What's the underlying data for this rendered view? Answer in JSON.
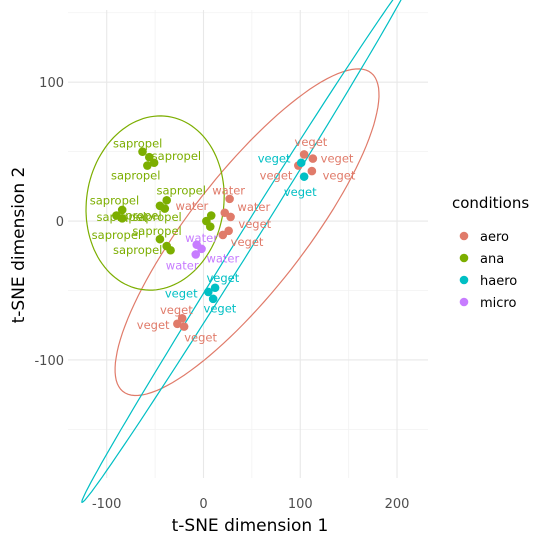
{
  "chart_data": {
    "type": "scatter",
    "xlabel": "t-SNE dimension 1",
    "ylabel": "t-SNE dimension 2",
    "xlim": [
      -140,
      232
    ],
    "ylim": [
      -185,
      152
    ],
    "x_ticks": [
      -100,
      0,
      100,
      200
    ],
    "y_ticks": [
      -100,
      0,
      100
    ],
    "x_tick_labels": [
      "-100",
      "0",
      "100",
      "200"
    ],
    "y_tick_labels": [
      "-100",
      "0",
      "100"
    ],
    "grid": true,
    "legend_position": "right",
    "legend_title": "conditions",
    "series": [
      {
        "name": "aero",
        "color": "#E07B6A",
        "points": [
          {
            "x": 104,
            "y": 48,
            "label": "veget"
          },
          {
            "x": 113,
            "y": 45,
            "label": "veget"
          },
          {
            "x": 98,
            "y": 40,
            "label": "veget"
          },
          {
            "x": 112,
            "y": 36,
            "label": "veget"
          },
          {
            "x": 27,
            "y": 16,
            "label": "water"
          },
          {
            "x": 22,
            "y": 6,
            "label": "water"
          },
          {
            "x": 28,
            "y": 3,
            "label": "water"
          },
          {
            "x": 26,
            "y": -7,
            "label": "veget"
          },
          {
            "x": 20,
            "y": -10,
            "label": "veget"
          },
          {
            "x": -22,
            "y": -70,
            "label": "veget"
          },
          {
            "x": -27,
            "y": -74,
            "label": "veget"
          },
          {
            "x": -20,
            "y": -76,
            "label": "veget"
          }
        ]
      },
      {
        "name": "ana",
        "color": "#7CAE00",
        "points": [
          {
            "x": -63,
            "y": 50,
            "label": "sapropel"
          },
          {
            "x": -56,
            "y": 46,
            "label": "sapropel"
          },
          {
            "x": -51,
            "y": 42,
            "label": "sapropel"
          },
          {
            "x": -58,
            "y": 40,
            "label": "sapropel"
          },
          {
            "x": -38,
            "y": 15,
            "label": "sapropel"
          },
          {
            "x": -45,
            "y": 11,
            "label": "sapropel"
          },
          {
            "x": -40,
            "y": 9,
            "label": "sapropel"
          },
          {
            "x": -84,
            "y": 8,
            "label": "sapropel"
          },
          {
            "x": -90,
            "y": 4,
            "label": "sapropel"
          },
          {
            "x": -84,
            "y": 2,
            "label": "sapropel"
          },
          {
            "x": -45,
            "y": -13,
            "label": "sapropel"
          },
          {
            "x": -38,
            "y": -18,
            "label": "sapropel"
          },
          {
            "x": -34,
            "y": -21,
            "label": "sapropel"
          },
          {
            "x": 3,
            "y": 0,
            "label": "water"
          },
          {
            "x": 8,
            "y": 4,
            "label": "water"
          },
          {
            "x": 7,
            "y": -4,
            "label": "water"
          }
        ]
      },
      {
        "name": "haero",
        "color": "#00BFC4",
        "points": [
          {
            "x": 101,
            "y": 42,
            "label": "veget"
          },
          {
            "x": 104,
            "y": 32,
            "label": "veget"
          },
          {
            "x": 12,
            "y": -48,
            "label": "veget"
          },
          {
            "x": 5,
            "y": -51,
            "label": "veget"
          },
          {
            "x": 10,
            "y": -56,
            "label": "veget"
          }
        ]
      },
      {
        "name": "micro",
        "color": "#C77CFF",
        "points": [
          {
            "x": -7,
            "y": -17,
            "label": "water"
          },
          {
            "x": -2,
            "y": -20,
            "label": "water"
          },
          {
            "x": -8,
            "y": -24,
            "label": "water"
          }
        ]
      }
    ],
    "ellipses": [
      {
        "group": "aero",
        "color": "#E07B6A",
        "cx": 45,
        "cy": -8,
        "a": 173,
        "b": 50,
        "angle_deg": 40
      },
      {
        "group": "ana",
        "color": "#7CAE00",
        "cx": -50,
        "cy": 13,
        "a": 72,
        "b": 62,
        "angle_deg": 15
      },
      {
        "group": "haero",
        "color": "#00BFC4",
        "cx": 45,
        "cy": -13,
        "a": 255,
        "b": 7.5,
        "angle_deg": 48
      }
    ],
    "text_labels": [
      {
        "text": "sapropel",
        "x": -68,
        "y": 56,
        "color": "#7CAE00"
      },
      {
        "text": "sapropel",
        "x": -28,
        "y": 47,
        "color": "#7CAE00"
      },
      {
        "text": "sapropel",
        "x": -70,
        "y": 33,
        "color": "#7CAE00"
      },
      {
        "text": "sapropel",
        "x": -23,
        "y": 22,
        "color": "#7CAE00"
      },
      {
        "text": "sapropel",
        "x": -92,
        "y": 15,
        "color": "#7CAE00"
      },
      {
        "text": "sapropel",
        "x": -48,
        "y": 3,
        "color": "#7CAE00"
      },
      {
        "text": "sapropel",
        "x": -85,
        "y": 3,
        "color": "#7CAE00"
      },
      {
        "text": "propel",
        "x": -62,
        "y": 4,
        "color": "#7CAE00"
      },
      {
        "text": "sapropel",
        "x": -48,
        "y": -7,
        "color": "#7CAE00"
      },
      {
        "text": "sapropel",
        "x": -90,
        "y": -10,
        "color": "#7CAE00"
      },
      {
        "text": "sapropel",
        "x": -68,
        "y": -21,
        "color": "#7CAE00"
      },
      {
        "text": "water",
        "x": -12,
        "y": 11,
        "color": "#E07B6A"
      },
      {
        "text": "water",
        "x": 26,
        "y": 22,
        "color": "#E07B6A"
      },
      {
        "text": "water",
        "x": 52,
        "y": 10,
        "color": "#E07B6A"
      },
      {
        "text": "veget",
        "x": 53,
        "y": -2,
        "color": "#E07B6A"
      },
      {
        "text": "veget",
        "x": 45,
        "y": -15,
        "color": "#E07B6A"
      },
      {
        "text": "water",
        "x": 20,
        "y": -27,
        "color": "#C77CFF"
      },
      {
        "text": "water",
        "x": -22,
        "y": -32,
        "color": "#C77CFF"
      },
      {
        "text": "water",
        "x": -2,
        "y": -12,
        "color": "#C77CFF"
      },
      {
        "text": "veget",
        "x": 20,
        "y": -41,
        "color": "#00BFC4"
      },
      {
        "text": "veget",
        "x": -23,
        "y": -52,
        "color": "#00BFC4"
      },
      {
        "text": "veget",
        "x": 17,
        "y": -63,
        "color": "#00BFC4"
      },
      {
        "text": "veget",
        "x": -28,
        "y": -64,
        "color": "#E07B6A"
      },
      {
        "text": "veget",
        "x": -52,
        "y": -75,
        "color": "#E07B6A"
      },
      {
        "text": "veget",
        "x": -3,
        "y": -84,
        "color": "#E07B6A"
      },
      {
        "text": "veget",
        "x": 111,
        "y": 57,
        "color": "#E07B6A"
      },
      {
        "text": "veget",
        "x": 73,
        "y": 45,
        "color": "#00BFC4"
      },
      {
        "text": "veget",
        "x": 138,
        "y": 45,
        "color": "#E07B6A"
      },
      {
        "text": "veget",
        "x": 75,
        "y": 33,
        "color": "#E07B6A"
      },
      {
        "text": "veget",
        "x": 140,
        "y": 33,
        "color": "#E07B6A"
      },
      {
        "text": "veget",
        "x": 100,
        "y": 21,
        "color": "#00BFC4"
      }
    ]
  }
}
